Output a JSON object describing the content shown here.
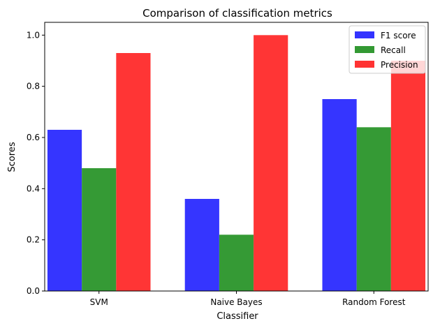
{
  "chart_data": {
    "type": "bar",
    "title": "Comparison of classification metrics",
    "xlabel": "Classifier",
    "ylabel": "Scores",
    "categories": [
      "SVM",
      "Naive Bayes",
      "Random Forest"
    ],
    "series": [
      {
        "name": "F1 score",
        "color": "#3333ff",
        "values": [
          0.63,
          0.36,
          0.75
        ]
      },
      {
        "name": "Recall",
        "color": "#339933",
        "values": [
          0.48,
          0.22,
          0.64
        ]
      },
      {
        "name": "Precision",
        "color": "#ff3333",
        "values": [
          0.93,
          1.0,
          0.9
        ]
      }
    ],
    "ylim": [
      0,
      1.05
    ],
    "yticks": [
      0.0,
      0.2,
      0.4,
      0.6,
      0.8,
      1.0
    ],
    "ytick_labels": [
      "0.0",
      "0.2",
      "0.4",
      "0.6",
      "0.8",
      "1.0"
    ],
    "grid": false,
    "legend_position": "top-right"
  }
}
